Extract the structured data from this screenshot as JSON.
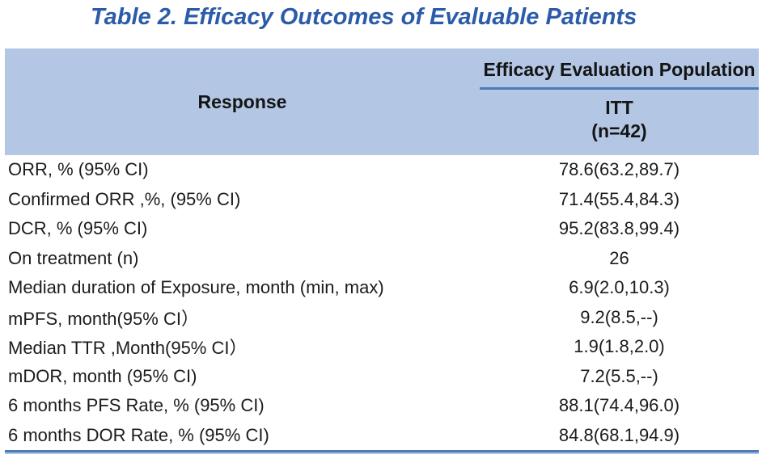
{
  "title": "Table 2. Efficacy Outcomes of Evaluable Patients",
  "table": {
    "columns": {
      "response": "Response",
      "population_group": "Efficacy Evaluation Population",
      "subcolumn": "ITT",
      "subcolumn_n": "(n=42)"
    },
    "rows": [
      {
        "label": "ORR, % (95% CI)",
        "value": "78.6(63.2,89.7)"
      },
      {
        "label": "Confirmed ORR ,%, (95% CI)",
        "value": "71.4(55.4,84.3)"
      },
      {
        "label": "DCR, % (95% CI)",
        "value": "95.2(83.8,99.4)"
      },
      {
        "label": "On treatment (n)",
        "value": "26"
      },
      {
        "label": "Median duration of Exposure, month (min, max)",
        "value": "6.9(2.0,10.3)"
      },
      {
        "label": "mPFS, month(95% CI）",
        "value": "9.2(8.5,--)"
      },
      {
        "label": "Median TTR ,Month(95% CI）",
        "value": "1.9(1.8,2.0)"
      },
      {
        "label": "mDOR, month (95% CI)",
        "value": "7.2(5.5,--)"
      },
      {
        "label": "6 months PFS Rate, % (95% CI)",
        "value": "88.1(74.4,96.0)"
      },
      {
        "label": "6 months DOR Rate, % (95% CI)",
        "value": "84.8(68.1,94.9)"
      }
    ]
  },
  "colors": {
    "title_blue": "#2b5ba9",
    "header_bg": "#b3c7e5",
    "rule_blue": "#4d7bb5",
    "rule_light_blue": "#a9c6e2",
    "body_text": "#1c1c1c"
  }
}
